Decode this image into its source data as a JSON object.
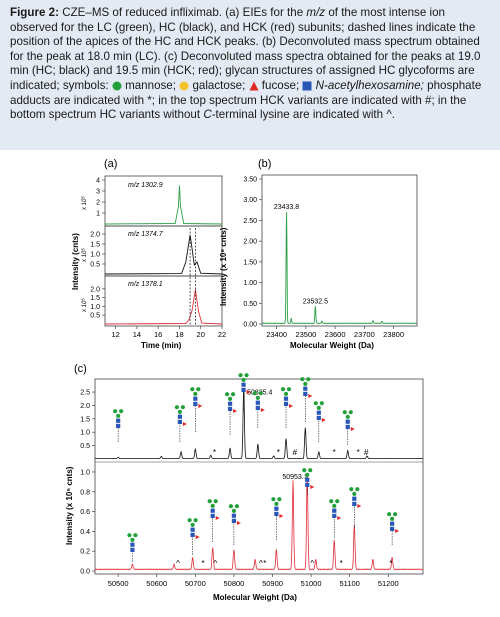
{
  "caption": {
    "label": "Figure 2:",
    "p1": " CZE–MS of reduced infliximab. (a) EIEs for the ",
    "mz": "m/z",
    "p2": " of the most intense ion observed for the LC (green), HC (black), and HCK (red) subunits; dashed lines indicate the position of the apices of the HC and HCK peaks. (b) Deconvoluted mass spectrum obtained for the peak at 18.0 min (LC). (c) Deconvoluted mass spectra obtained for the peaks at 19.0 min (HC; black) and 19.5 min (HCK; red); glycan structures of assigned HC glycoforms are indicated; symbols: ",
    "s_mannose": "mannose;",
    "s_galactose": "galactose;",
    "s_fucose": "fucose;",
    "s_glcnac": "N-acetylhexosamine;",
    "p3": " phosphate adducts are indicated with *; in the top spectrum HCK variants are indicated with #; in the bottom spectrum HC variants without ",
    "cterm": "C",
    "p4": "-terminal lysine are indicated with ^."
  },
  "colors": {
    "lc": "#2e9e4a",
    "hc": "#111111",
    "hck": "#e0303a",
    "mannose": "#23a03c",
    "galactose": "#f2c12e",
    "fucose": "#e02828",
    "glcnac": "#2857b8",
    "caption_bg": "#e3eaf3"
  },
  "panel_labels": {
    "a": "(a)",
    "b": "(b)",
    "c": "(c)"
  },
  "chart_data": [
    {
      "id": "a",
      "type": "line",
      "xlabel": "Time (min)",
      "ylabel": "Intensity (cnts)",
      "xlim": [
        11,
        22
      ],
      "xticks": [
        "12",
        "14",
        "16",
        "18",
        "20",
        "22"
      ],
      "subplots": [
        {
          "label": "m/z 1302.9",
          "multiplier": "x 10⁵",
          "ylim": [
            0,
            4
          ],
          "yticks": [
            "1",
            "2",
            "3",
            "4"
          ],
          "color": "green",
          "series": [
            {
              "x": [
                11,
                17.6,
                17.9,
                18.0,
                18.1,
                18.4,
                22
              ],
              "y": [
                0,
                0.05,
                1.6,
                3.5,
                1.6,
                0.05,
                0
              ]
            }
          ]
        },
        {
          "label": "m/z 1374.7",
          "multiplier": "x 10⁵",
          "ylim": [
            0,
            2.2
          ],
          "yticks": [
            "0.5",
            "1.0",
            "1.5",
            "2.0"
          ],
          "color": "black",
          "series": [
            {
              "x": [
                11,
                18.2,
                18.6,
                18.85,
                19.0,
                19.15,
                19.4,
                19.65,
                20.0,
                22
              ],
              "y": [
                0,
                0.02,
                0.6,
                1.45,
                1.95,
                1.4,
                0.45,
                0.6,
                0.04,
                0
              ]
            }
          ]
        },
        {
          "label": "m/z 1378.1",
          "multiplier": "x 10⁵",
          "ylim": [
            0,
            2.5
          ],
          "yticks": [
            "0.5",
            "1.0",
            "1.5",
            "2.0"
          ],
          "color": "red",
          "series": [
            {
              "x": [
                11,
                18.6,
                18.9,
                19.2,
                19.5,
                19.8,
                20.1,
                22
              ],
              "y": [
                0,
                0.03,
                0.25,
                0.8,
                1.95,
                0.7,
                0.05,
                0
              ]
            }
          ]
        }
      ],
      "dashed_lines": [
        19.0,
        19.5
      ]
    },
    {
      "id": "b",
      "type": "line",
      "xlabel": "Molecular Weight (Da)",
      "ylabel": "Intensity (x 10⁶ cnts)",
      "xlim": [
        23350,
        23880
      ],
      "ylim": [
        0,
        3.5
      ],
      "xticks": [
        "23400",
        "23500",
        "23600",
        "23700",
        "23800"
      ],
      "yticks": [
        "0.00",
        "0.50",
        "1.00",
        "1.50",
        "2.00",
        "2.50",
        "3.00",
        "3.50"
      ],
      "peaks": [
        {
          "x": 23433.8,
          "y": 2.7,
          "label": "23433.8"
        },
        {
          "x": 23532.5,
          "y": 0.42,
          "label": "23532.5"
        }
      ],
      "color": "green"
    },
    {
      "id": "c",
      "type": "line",
      "xlabel": "Molecular Weight (Da)",
      "ylabel": "Intensity (x 10⁵ cnts)",
      "xlim": [
        50440,
        51290
      ],
      "xticks": [
        "50500",
        "50600",
        "50700",
        "50800",
        "50900",
        "51000",
        "51100",
        "51200"
      ],
      "top": {
        "color": "black",
        "ylim": [
          0,
          2.8
        ],
        "yticks": [
          "0.5",
          "1.0",
          "1.5",
          "2.0",
          "2.5"
        ],
        "peaks": [
          {
            "x": 50500,
            "y": 0.05
          },
          {
            "x": 50612,
            "y": 0.08
          },
          {
            "x": 50663,
            "y": 0.25
          },
          {
            "x": 50700,
            "y": 0.35
          },
          {
            "x": 50740,
            "y": 0.12
          },
          {
            "x": 50790,
            "y": 0.4
          },
          {
            "x": 50825.4,
            "y": 2.7,
            "label": "50825.4"
          },
          {
            "x": 50862,
            "y": 0.55
          },
          {
            "x": 50903,
            "y": 0.1
          },
          {
            "x": 50935,
            "y": 0.75
          },
          {
            "x": 50985,
            "y": 1.15
          },
          {
            "x": 51020,
            "y": 0.25
          },
          {
            "x": 51095,
            "y": 0.3
          },
          {
            "x": 51145,
            "y": 0.1
          }
        ],
        "markers": [
          {
            "x": 50750,
            "text": "*"
          },
          {
            "x": 50915,
            "text": "*"
          },
          {
            "x": 50958,
            "text": "#"
          },
          {
            "x": 51060,
            "text": "*"
          },
          {
            "x": 51122,
            "text": "*"
          },
          {
            "x": 51143,
            "text": "#"
          }
        ]
      },
      "bottom": {
        "color": "red",
        "ylim": [
          0,
          1.05
        ],
        "yticks": [
          "0.0",
          "0.2",
          "0.4",
          "0.6",
          "0.8",
          "1.0"
        ],
        "peaks": [
          {
            "x": 50537,
            "y": 0.05
          },
          {
            "x": 50645,
            "y": 0.05
          },
          {
            "x": 50693,
            "y": 0.12
          },
          {
            "x": 50745,
            "y": 0.22
          },
          {
            "x": 50800,
            "y": 0.2
          },
          {
            "x": 50855,
            "y": 0.1
          },
          {
            "x": 50910,
            "y": 0.2
          },
          {
            "x": 50953.1,
            "y": 0.9,
            "label": "50953.1"
          },
          {
            "x": 50990,
            "y": 0.95
          },
          {
            "x": 51012,
            "y": 0.1
          },
          {
            "x": 51060,
            "y": 0.3
          },
          {
            "x": 51112,
            "y": 0.45
          },
          {
            "x": 51160,
            "y": 0.1
          },
          {
            "x": 51210,
            "y": 0.12
          }
        ],
        "markers": [
          {
            "x": 50655,
            "text": "^"
          },
          {
            "x": 50720,
            "text": "*"
          },
          {
            "x": 50752,
            "text": "^"
          },
          {
            "x": 50870,
            "text": "^"
          },
          {
            "x": 50880,
            "text": "*"
          },
          {
            "x": 51003,
            "text": "^"
          },
          {
            "x": 51078,
            "text": "*"
          },
          {
            "x": 51207,
            "text": "*"
          }
        ]
      }
    }
  ]
}
